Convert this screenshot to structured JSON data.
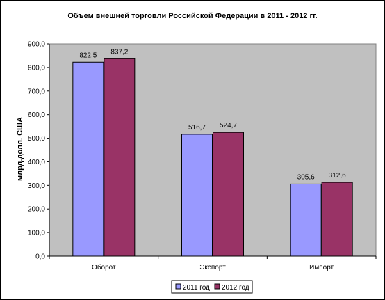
{
  "chart_data": {
    "type": "bar",
    "title": "Объем внешней торговли Российской Федерации в 2011 - 2012 гг.",
    "ylabel": "млрд.долл. США",
    "xlabel": "",
    "categories": [
      "Оборот",
      "Экспорт",
      "Импорт"
    ],
    "series": [
      {
        "name": "2011 год",
        "values": [
          822.5,
          516.7,
          305.6
        ],
        "labels": [
          "822,5",
          "516,7",
          "305,6"
        ],
        "color": "#9999FF"
      },
      {
        "name": "2012 год",
        "values": [
          837.2,
          524.7,
          312.6
        ],
        "labels": [
          "837,2",
          "524,7",
          "312,6"
        ],
        "color": "#993366"
      }
    ],
    "ylim": [
      0,
      900
    ],
    "yticks": [
      0,
      100,
      200,
      300,
      400,
      500,
      600,
      700,
      800,
      900
    ],
    "ytick_labels": [
      "0,0",
      "100,0",
      "200,0",
      "300,0",
      "400,0",
      "500,0",
      "600,0",
      "700,0",
      "800,0",
      "900,0"
    ],
    "grid": false,
    "legend": "bottom",
    "plot_background": "#C0C0C0"
  }
}
